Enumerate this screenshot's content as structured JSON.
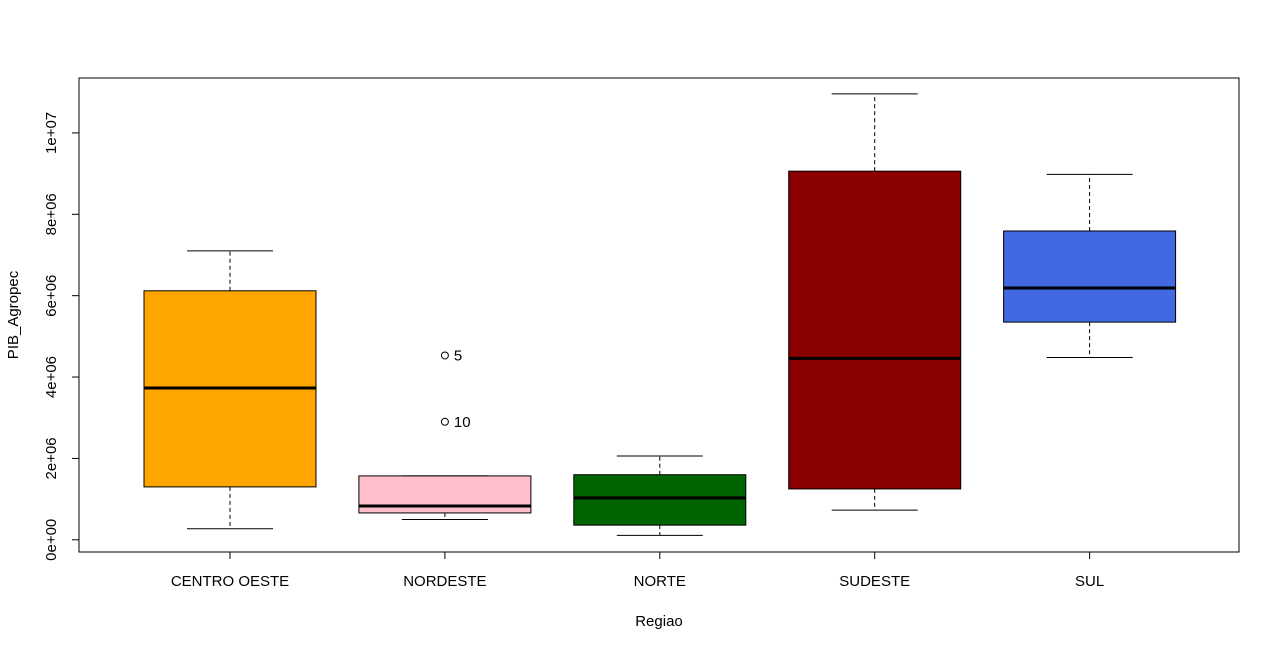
{
  "chart_data": {
    "type": "boxplot",
    "xlabel": "Regiao",
    "ylabel": "PIB_Agropec",
    "ylim": [
      -300000,
      11350000
    ],
    "y_ticks": [
      {
        "value": 0,
        "label": "0e+00"
      },
      {
        "value": 2000000,
        "label": "2e+06"
      },
      {
        "value": 4000000,
        "label": "4e+06"
      },
      {
        "value": 6000000,
        "label": "6e+06"
      },
      {
        "value": 8000000,
        "label": "8e+06"
      },
      {
        "value": 10000000,
        "label": "1e+07"
      }
    ],
    "categories": [
      "CENTRO OESTE",
      "NORDESTE",
      "NORTE",
      "SUDESTE",
      "SUL"
    ],
    "boxes": [
      {
        "category": "CENTRO OESTE",
        "color": "#FFA500",
        "whisker_low": 270000,
        "q1": 1300000,
        "median": 3730000,
        "q3": 6120000,
        "whisker_high": 7100000,
        "outliers": []
      },
      {
        "category": "NORDESTE",
        "color": "#FFC0CB",
        "whisker_low": 500000,
        "q1": 660000,
        "median": 830000,
        "q3": 1570000,
        "whisker_high": 1570000,
        "outliers": [
          {
            "value": 4530000,
            "label": "5"
          },
          {
            "value": 2900000,
            "label": "10"
          }
        ]
      },
      {
        "category": "NORTE",
        "color": "#006400",
        "whisker_low": 110000,
        "q1": 360000,
        "median": 1030000,
        "q3": 1600000,
        "whisker_high": 2060000,
        "outliers": []
      },
      {
        "category": "SUDESTE",
        "color": "#8B0000",
        "whisker_low": 730000,
        "q1": 1250000,
        "median": 4460000,
        "q3": 9060000,
        "whisker_high": 10960000,
        "outliers": []
      },
      {
        "category": "SUL",
        "color": "#4169E1",
        "whisker_low": 4480000,
        "q1": 5350000,
        "median": 6190000,
        "q3": 7590000,
        "whisker_high": 8980000,
        "outliers": []
      }
    ]
  }
}
